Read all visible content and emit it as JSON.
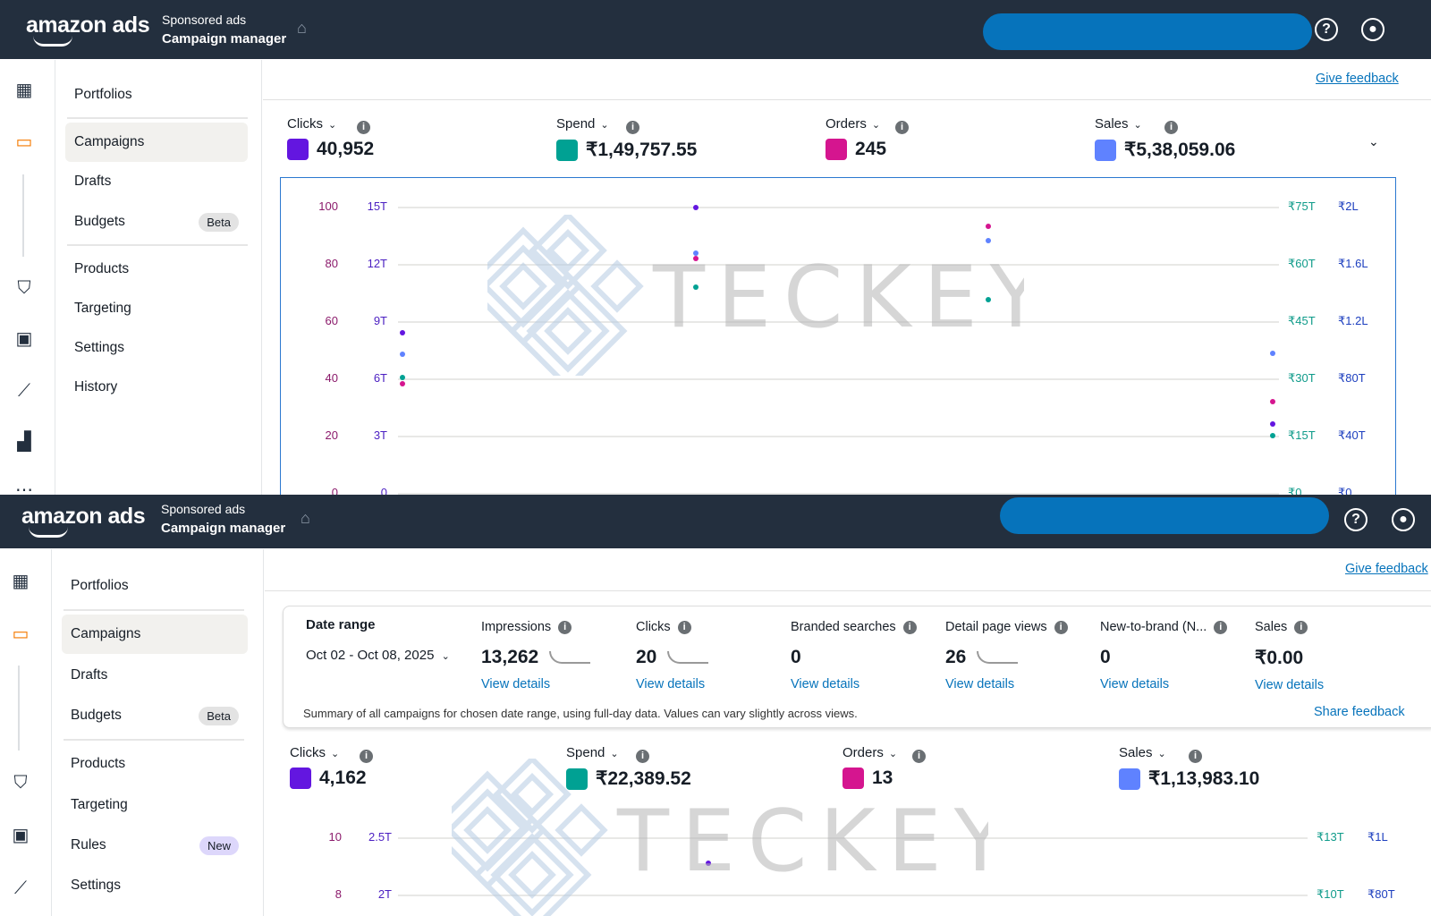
{
  "header": {
    "logo": "amazon ads",
    "subtitle": "Sponsored ads",
    "title": "Campaign manager"
  },
  "nav": {
    "items": [
      "Portfolios",
      "Campaigns",
      "Drafts",
      "Budgets",
      "Products",
      "Targeting",
      "Settings",
      "History"
    ],
    "budgets_badge": "Beta"
  },
  "nav2": {
    "items": [
      "Portfolios",
      "Campaigns",
      "Drafts",
      "Budgets",
      "Products",
      "Targeting",
      "Rules",
      "Settings"
    ],
    "budgets_badge": "Beta",
    "rules_badge": "New"
  },
  "give_feedback": "Give feedback",
  "metrics_top": [
    {
      "label": "Clicks",
      "value": "40,952",
      "color": "#6316e0"
    },
    {
      "label": "Spend",
      "value": "₹1,49,757.55",
      "color": "#00a193"
    },
    {
      "label": "Orders",
      "value": "245",
      "color": "#d5158f"
    },
    {
      "label": "Sales",
      "value": "₹5,38,059.06",
      "color": "#5f82ff"
    }
  ],
  "summary": {
    "date_label": "Date range",
    "date_value": "Oct 02 - Oct 08, 2025",
    "items": [
      {
        "label": "Impressions",
        "value": "13,262",
        "link": "View details"
      },
      {
        "label": "Clicks",
        "value": "20",
        "link": "View details"
      },
      {
        "label": "Branded searches",
        "value": "0",
        "link": "View details"
      },
      {
        "label": "Detail page views",
        "value": "26",
        "link": "View details"
      },
      {
        "label": "New-to-brand (N...",
        "value": "0",
        "link": "View details"
      },
      {
        "label": "Sales",
        "value": "₹0.00",
        "link": "View details"
      }
    ],
    "note": "Summary of all campaigns for chosen date range, using full-day data. Values can vary slightly across views.",
    "share": "Share feedback"
  },
  "metrics_bottom": [
    {
      "label": "Clicks",
      "value": "4,162",
      "color": "#6316e0"
    },
    {
      "label": "Spend",
      "value": "₹22,389.52",
      "color": "#00a193"
    },
    {
      "label": "Orders",
      "value": "13",
      "color": "#d5158f"
    },
    {
      "label": "Sales",
      "value": "₹1,13,983.10",
      "color": "#5f82ff"
    }
  ],
  "watermark": "TECKEY",
  "chart_data": [
    {
      "type": "scatter",
      "grid": true,
      "axes": {
        "orders": {
          "ticks": [
            "100",
            "80",
            "60",
            "40",
            "20",
            "0"
          ],
          "range": [
            0,
            100
          ]
        },
        "clicks": {
          "ticks": [
            "15T",
            "12T",
            "9T",
            "6T",
            "3T",
            "0"
          ],
          "range": [
            0,
            15000
          ]
        },
        "spend": {
          "ticks": [
            "₹75T",
            "₹60T",
            "₹45T",
            "₹30T",
            "₹15T",
            "₹0"
          ],
          "range": [
            0,
            75000
          ]
        },
        "sales": {
          "ticks": [
            "₹2L",
            "₹1.6L",
            "₹1.2L",
            "₹80T",
            "₹40T",
            "₹0"
          ],
          "range": [
            0,
            200000
          ]
        }
      },
      "series": [
        {
          "name": "Clicks",
          "axis": "clicks",
          "color": "#6316e0",
          "values": [
            8400,
            14950,
            null,
            3600
          ]
        },
        {
          "name": "Spend",
          "axis": "spend",
          "color": "#00a193",
          "values": [
            30200,
            53900,
            50600,
            15000
          ]
        },
        {
          "name": "Orders",
          "axis": "orders",
          "color": "#d5158f",
          "values": [
            38,
            82,
            93,
            32
          ]
        },
        {
          "name": "Sales",
          "axis": "sales",
          "color": "#5f82ff",
          "values": [
            96900,
            167500,
            176000,
            97500
          ]
        }
      ]
    },
    {
      "type": "scatter",
      "grid": true,
      "axes": {
        "orders": {
          "ticks": [
            "10",
            "8"
          ]
        },
        "clicks": {
          "ticks": [
            "2.5T",
            "2T"
          ]
        },
        "spend": {
          "ticks": [
            "₹13T",
            "₹10T"
          ]
        },
        "sales": {
          "ticks": [
            "₹1L",
            "₹80T"
          ]
        }
      },
      "series": [
        {
          "name": "Clicks",
          "axis": "clicks",
          "color": "#6316e0",
          "values": [
            2270
          ]
        }
      ]
    }
  ]
}
